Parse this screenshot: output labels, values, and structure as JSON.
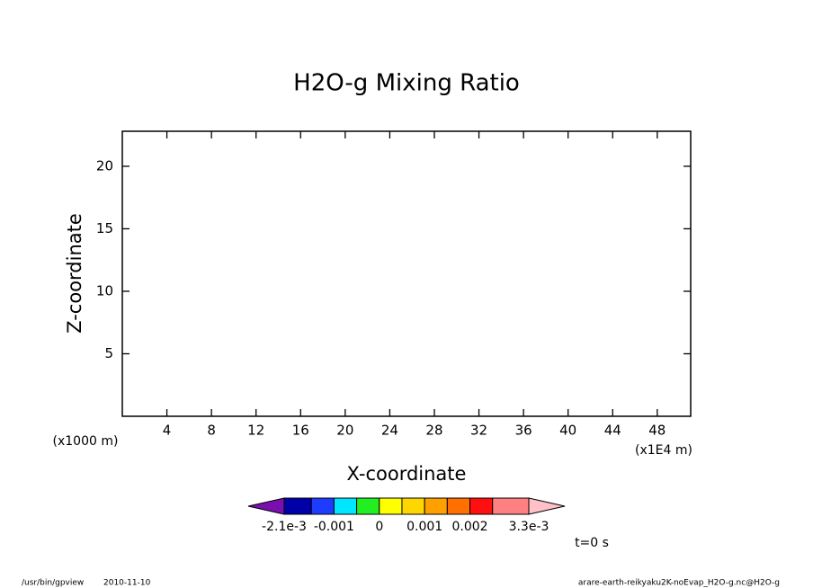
{
  "chart_data": {
    "type": "contour",
    "title": "H2O-g Mixing Ratio",
    "x_label": "X-coordinate",
    "y_label": "Z-coordinate",
    "x_unit": "(x1E4 m)",
    "y_unit": "(x1000 m)",
    "xlim": [
      0,
      51
    ],
    "ylim": [
      0,
      22.8
    ],
    "xticks": [
      4,
      8,
      12,
      16,
      20,
      24,
      28,
      32,
      36,
      40,
      44,
      48
    ],
    "yticks": [
      5,
      10,
      15,
      20
    ],
    "colorbar": {
      "levels": [
        -0.0021,
        -0.0015,
        -0.001,
        -0.0005,
        0,
        0.0005,
        0.001,
        0.0015,
        0.002,
        0.0025,
        0.0033
      ],
      "colors": [
        "#7a0fb0",
        "#0000a8",
        "#1e3cff",
        "#00e6ff",
        "#22ee22",
        "#ffff00",
        "#ffd700",
        "#ffa000",
        "#ff7000",
        "#ff1010",
        "#ff8080",
        "#ffc0c8"
      ],
      "ticks": [
        {
          "value": -0.0021,
          "label": "-2.1e-3"
        },
        -0.001,
        0,
        0.001,
        0.002,
        {
          "value": 0.0033,
          "label": "3.3e-3"
        }
      ]
    },
    "time_label": "t=0 s",
    "footer_program": "/usr/bin/gpview",
    "footer_date": "2010-11-10",
    "footer_file": "arare-earth-reikyaku2K-noEvap_H2O-g.nc@H2O-g"
  }
}
